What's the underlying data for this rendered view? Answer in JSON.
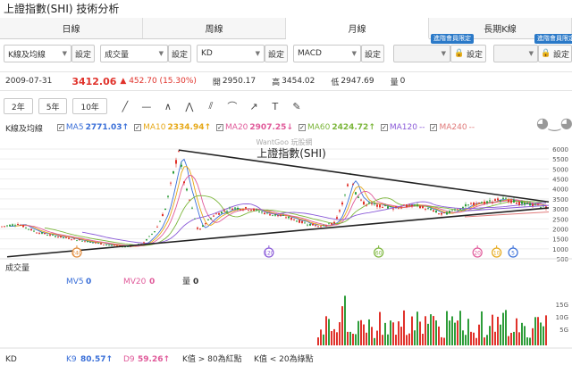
{
  "page": {
    "title": "上證指數(SHI) 技術分析"
  },
  "tabs": [
    {
      "label": "日線",
      "active": false
    },
    {
      "label": "周線",
      "active": false
    },
    {
      "label": "月線",
      "active": true
    },
    {
      "label": "長期K線",
      "active": false
    }
  ],
  "toolbar": {
    "main_select": "K線及均線",
    "volume_select": "成交量",
    "kd_select": "KD",
    "macd_select": "MACD",
    "set_label": "設定",
    "locked_badge": "進階會員限定"
  },
  "info": {
    "date": "2009-07-31",
    "close": "3412.06",
    "change": "▲ 452.70 (15.30%)",
    "open_label": "開",
    "open": "2950.17",
    "high_label": "高",
    "high": "3454.02",
    "low_label": "低",
    "low": "2947.69",
    "volume_label": "量",
    "volume": "0"
  },
  "ranges": [
    "2年",
    "5年",
    "10年"
  ],
  "legend": {
    "label": "K線及均線",
    "items": [
      {
        "name": "MA5",
        "value": "2771.03↑",
        "color": "#3a6fd8"
      },
      {
        "name": "MA10",
        "value": "2334.94↑",
        "color": "#e6a817"
      },
      {
        "name": "MA20",
        "value": "2907.25↓",
        "color": "#e05a9a"
      },
      {
        "name": "MA60",
        "value": "2424.72↑",
        "color": "#7cb63b"
      },
      {
        "name": "MA120",
        "value": "--",
        "color": "#8a5ad8"
      },
      {
        "name": "MA240",
        "value": "--",
        "color": "#e07a7a"
      }
    ]
  },
  "chart_data": {
    "type": "candlestick",
    "title": "上證指數(SHI)",
    "watermark": "WantGoo 玩股網",
    "ylim": [
      500,
      6000
    ],
    "yticks": [
      "6000",
      "5500",
      "5000",
      "4500",
      "4000",
      "3500",
      "3000",
      "2500",
      "2000",
      "1500",
      "1000",
      "500"
    ],
    "markers": [
      {
        "label": "240",
        "color": "#e08a3a",
        "x_frac": 0.14
      },
      {
        "label": "120",
        "color": "#8a5ad8",
        "x_frac": 0.49
      },
      {
        "label": "60",
        "color": "#7cb63b",
        "x_frac": 0.69
      },
      {
        "label": "20",
        "color": "#e05a9a",
        "x_frac": 0.87
      },
      {
        "label": "10",
        "color": "#e6a817",
        "x_frac": 0.905
      },
      {
        "label": "5",
        "color": "#3a6fd8",
        "x_frac": 0.935
      }
    ]
  },
  "volume": {
    "label": "成交量",
    "mv5_label": "MV5",
    "mv5": "0",
    "mv20_label": "MV20",
    "mv20": "0",
    "q_label": "量",
    "q": "0",
    "yticks": [
      "15G",
      "10G",
      "5G"
    ]
  },
  "kd": {
    "label": "KD",
    "k_label": "K9",
    "k": "80.57↑",
    "d_label": "D9",
    "d": "59.26↑",
    "note1": "K值 > 80為紅點",
    "note2": "K值 < 20為綠點"
  },
  "colors": {
    "up": "#e0322b",
    "down": "#2e9d3a",
    "trend": "#222222"
  }
}
